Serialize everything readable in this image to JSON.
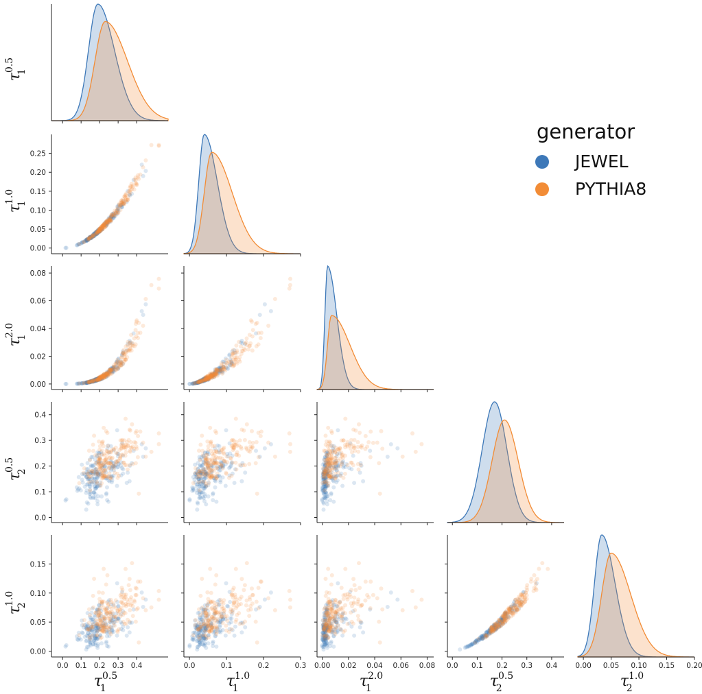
{
  "chart_data": {
    "type": "scatter",
    "legend": {
      "title": "generator",
      "placement": "upper-right",
      "entries": [
        {
          "name": "JEWEL",
          "color": "#3d78b8"
        },
        {
          "name": "PYTHIA8",
          "color": "#f28c36"
        }
      ]
    },
    "variables": [
      {
        "id": "t1_05",
        "base": "τ",
        "sub": "1",
        "sup": "0.5",
        "range": [
          -0.06,
          0.57
        ],
        "ticks": [
          0.0,
          0.1,
          0.2,
          0.3,
          0.4
        ],
        "tick_labels": [
          "0.0",
          "0.1",
          "0.2",
          "0.3",
          "0.4"
        ]
      },
      {
        "id": "t1_10",
        "base": "τ",
        "sub": "1",
        "sup": "1.0",
        "range": [
          -0.015,
          0.3
        ],
        "ticks": [
          0.0,
          0.05,
          0.1,
          0.15,
          0.2,
          0.25
        ],
        "tick_labels": [
          "0.00",
          "0.05",
          "0.10",
          "0.15",
          "0.20",
          "0.25"
        ],
        "x_ticks": [
          0.0,
          0.1,
          0.2,
          0.3
        ],
        "x_tick_labels": [
          "0.0",
          "0.1",
          "0.2",
          "0.3"
        ]
      },
      {
        "id": "t1_20",
        "base": "τ",
        "sub": "1",
        "sup": "2.0",
        "range": [
          -0.004,
          0.085
        ],
        "ticks": [
          0.0,
          0.02,
          0.04,
          0.06,
          0.08
        ],
        "tick_labels": [
          "0.00",
          "0.02",
          "0.04",
          "0.06",
          "0.08"
        ]
      },
      {
        "id": "t2_05",
        "base": "τ",
        "sub": "2",
        "sup": "0.5",
        "range": [
          -0.02,
          0.45
        ],
        "ticks": [
          0.0,
          0.1,
          0.2,
          0.3,
          0.4
        ],
        "tick_labels": [
          "0.0",
          "0.1",
          "0.2",
          "0.3",
          "0.4"
        ]
      },
      {
        "id": "t2_10",
        "base": "τ",
        "sub": "2",
        "sup": "1.0",
        "range": [
          -0.01,
          0.2
        ],
        "ticks": [
          0.0,
          0.05,
          0.1,
          0.15
        ],
        "tick_labels": [
          "0.00",
          "0.05",
          "0.10",
          "0.15"
        ],
        "x_ticks": [
          0.0,
          0.05,
          0.1,
          0.15,
          0.2
        ],
        "x_tick_labels": [
          "0.00",
          "0.05",
          "0.10",
          "0.15",
          "0.20"
        ]
      }
    ],
    "kde": [
      {
        "variable": "t1_05",
        "JEWEL": {
          "mode": 0.19,
          "spread_left": 0.05,
          "spread_right": 0.09
        },
        "PYTHIA8": {
          "mode": 0.23,
          "spread_left": 0.055,
          "spread_right": 0.12
        }
      },
      {
        "variable": "t1_10",
        "JEWEL": {
          "mode": 0.04,
          "spread_left": 0.015,
          "spread_right": 0.035
        },
        "PYTHIA8": {
          "mode": 0.06,
          "spread_left": 0.02,
          "spread_right": 0.055
        }
      },
      {
        "variable": "t1_20",
        "JEWEL": {
          "mode": 0.004,
          "spread_left": 0.002,
          "spread_right": 0.007
        },
        "PYTHIA8": {
          "mode": 0.007,
          "spread_left": 0.003,
          "spread_right": 0.014
        }
      },
      {
        "variable": "t2_05",
        "JEWEL": {
          "mode": 0.17,
          "spread_left": 0.05,
          "spread_right": 0.05
        },
        "PYTHIA8": {
          "mode": 0.21,
          "spread_left": 0.05,
          "spread_right": 0.055
        }
      },
      {
        "variable": "t2_10",
        "JEWEL": {
          "mode": 0.033,
          "spread_left": 0.013,
          "spread_right": 0.024
        },
        "PYTHIA8": {
          "mode": 0.05,
          "spread_left": 0.017,
          "spread_right": 0.035
        }
      }
    ],
    "scatter_points_per_series": 200
  }
}
